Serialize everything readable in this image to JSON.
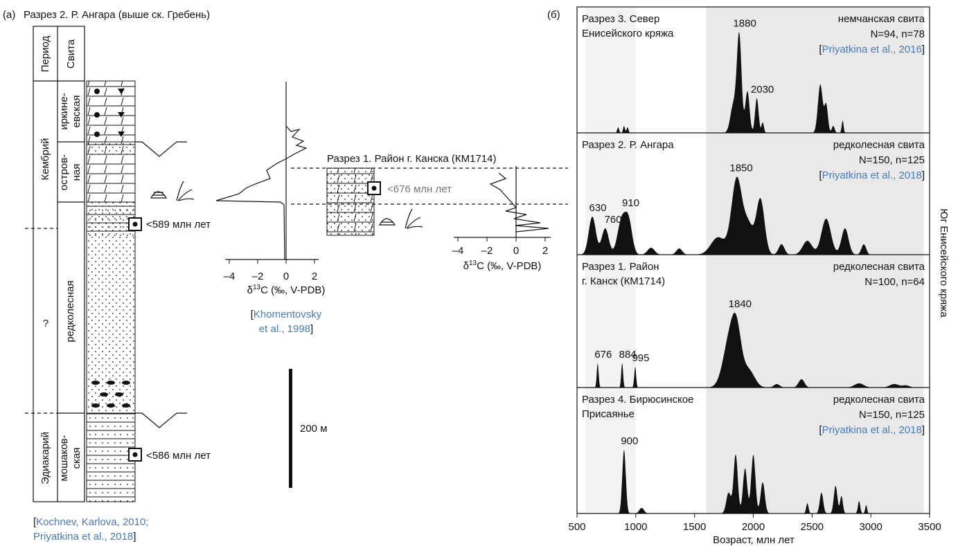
{
  "panel_a": {
    "label": "(а)",
    "title": "Разрез 2. Р. Ангара (выше ск. Гребень)",
    "column_headers": [
      "Период",
      "Свита"
    ],
    "periods": [
      "Кембрий",
      "?",
      "Эдиакарий"
    ],
    "formations": [
      [
        "иркине-",
        "евская"
      ],
      [
        "остров-",
        "ная"
      ],
      [
        "редколесная"
      ],
      [
        "мошаков-",
        "ская"
      ]
    ],
    "ages": [
      "<589 млн лет",
      "<586 млн лет"
    ],
    "scale_bar": "200 м",
    "delta_axis": {
      "ticks": [
        {
          "value": -4,
          "label": "–4"
        },
        {
          "value": -2,
          "label": "–2"
        },
        0,
        2
      ],
      "label": [
        "δ",
        "13",
        "C (‰, V-PDB)"
      ]
    },
    "delta_ref": [
      "[",
      "Khomentovsky",
      "et al., 1998",
      "]"
    ],
    "section_1": {
      "title": "Разрез 1. Район г. Канска (КМ1714)",
      "age": "<676 млн лет",
      "ticks": [
        {
          "value": -4,
          "label": "–4"
        },
        {
          "value": -2,
          "label": "–2"
        },
        0,
        2
      ],
      "label": [
        "δ",
        "13",
        "C (‰, V-PDB)"
      ]
    },
    "ref": [
      "[",
      "Kochnev, Karlova, 2010;",
      "Priyatkina et al., 2018",
      "]"
    ]
  },
  "panel_b": {
    "label": "(б)",
    "type": "density",
    "xlim": [
      500,
      3500
    ],
    "xticks": [
      500,
      1000,
      1500,
      2000,
      2500,
      3000,
      3500
    ],
    "xlabel": "Возраст, млн лет",
    "side_label": "Юг Енисейского кряжа",
    "shading": [
      [
        570,
        1000
      ],
      [
        1600,
        3450
      ]
    ],
    "panels": [
      {
        "title": [
          "Разрез 3. Север",
          "Енисейского кряжа"
        ],
        "formation": "немчанская свита",
        "n": "N=94, n=78",
        "ref": [
          "[",
          "Priyatkina et al., 2016",
          "]"
        ],
        "peak_labels": [
          1880,
          2030
        ],
        "components": [
          [
            850,
            8,
            8
          ],
          [
            900,
            10,
            8
          ],
          [
            930,
            8,
            8
          ],
          [
            1830,
            40,
            25
          ],
          [
            1880,
            140,
            20
          ],
          [
            1950,
            60,
            18
          ],
          [
            2030,
            50,
            15
          ],
          [
            2080,
            15,
            10
          ],
          [
            2570,
            70,
            20
          ],
          [
            2620,
            40,
            15
          ],
          [
            2680,
            10,
            12
          ],
          [
            2760,
            18,
            8
          ]
        ]
      },
      {
        "title": [
          "Разрез 2. Р. Ангара"
        ],
        "formation": "редколесная свита",
        "n": "N=150, n=125",
        "ref": [
          "[",
          "Priyatkina et al., 2018",
          "]"
        ],
        "peak_labels": [
          630,
          760,
          910,
          1850
        ],
        "components": [
          [
            630,
            55,
            30
          ],
          [
            740,
            38,
            30
          ],
          [
            880,
            50,
            35
          ],
          [
            940,
            45,
            30
          ],
          [
            1130,
            10,
            30
          ],
          [
            1370,
            9,
            25
          ],
          [
            1700,
            25,
            60
          ],
          [
            1860,
            110,
            45
          ],
          [
            1960,
            40,
            40
          ],
          [
            2060,
            80,
            35
          ],
          [
            2240,
            15,
            25
          ],
          [
            2460,
            20,
            40
          ],
          [
            2620,
            52,
            40
          ],
          [
            2780,
            38,
            30
          ],
          [
            2940,
            15,
            20
          ]
        ]
      },
      {
        "title": [
          "Разрез 1. Район",
          "г. Канск (КМ1714)"
        ],
        "formation": "редколесная свита",
        "n": "N=100, n=64",
        "peak_labels": [
          676,
          884,
          995,
          1840
        ],
        "components": [
          [
            676,
            35,
            8
          ],
          [
            884,
            35,
            8
          ],
          [
            995,
            30,
            8
          ],
          [
            1800,
            70,
            55
          ],
          [
            1860,
            60,
            40
          ],
          [
            1960,
            25,
            50
          ],
          [
            2200,
            5,
            25
          ],
          [
            2410,
            12,
            25
          ],
          [
            2900,
            6,
            40
          ],
          [
            3200,
            5,
            40
          ],
          [
            3300,
            3,
            30
          ]
        ]
      },
      {
        "title": [
          "Разрез 4. Бирюсинское",
          "Присаянье"
        ],
        "formation": "редколесная свита",
        "n": "N=150, n=125",
        "ref": [
          "[",
          "Priyatkina et al., 2018",
          "]"
        ],
        "peak_labels": [
          900
        ],
        "components": [
          [
            900,
            92,
            15
          ],
          [
            1050,
            8,
            20
          ],
          [
            1790,
            30,
            20
          ],
          [
            1850,
            85,
            18
          ],
          [
            1930,
            65,
            18
          ],
          [
            2000,
            85,
            18
          ],
          [
            2080,
            45,
            18
          ],
          [
            2460,
            15,
            10
          ],
          [
            2580,
            30,
            15
          ],
          [
            2700,
            40,
            15
          ],
          [
            2750,
            25,
            12
          ],
          [
            2900,
            18,
            10
          ],
          [
            2960,
            12,
            8
          ]
        ]
      }
    ]
  }
}
